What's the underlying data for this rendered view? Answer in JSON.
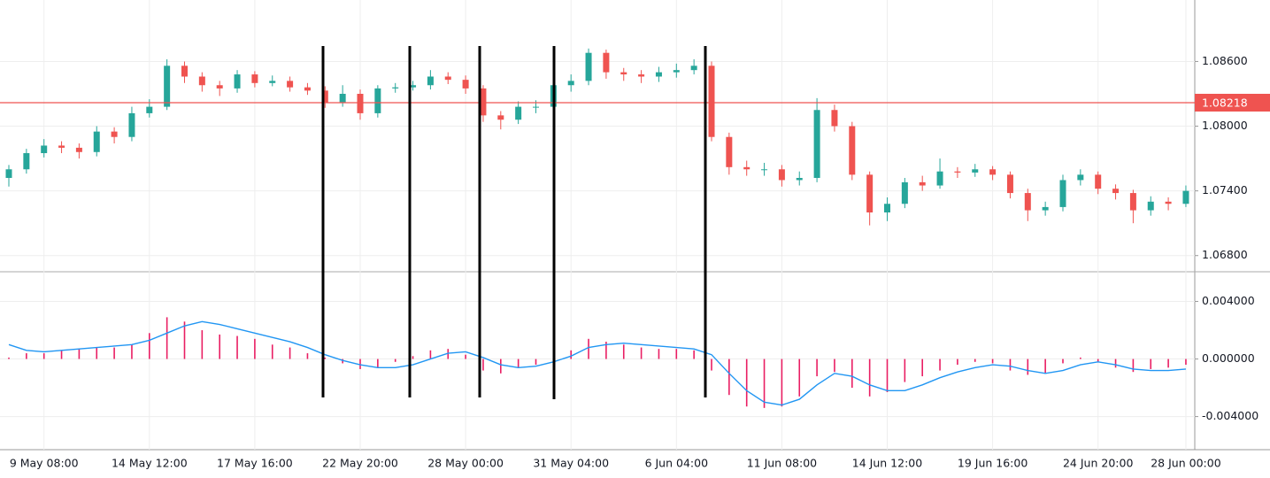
{
  "chart_data": [
    {
      "type": "candlestick",
      "open": [
        1.0752,
        1.076,
        1.0775,
        1.0782,
        1.078,
        1.0776,
        1.0795,
        1.079,
        1.0812,
        1.0818,
        1.0856,
        1.0846,
        1.0838,
        1.0835,
        1.0848,
        1.084,
        1.0842,
        1.0836,
        1.0833,
        1.0822,
        1.083,
        1.0812,
        1.0835,
        1.0836,
        1.0838,
        1.0846,
        1.0843,
        1.0835,
        1.081,
        1.0806,
        1.0818,
        1.0818,
        1.0838,
        1.0842,
        1.0868,
        1.085,
        1.0848,
        1.0846,
        1.085,
        1.0852,
        1.0856,
        1.079,
        1.0762,
        1.076,
        1.076,
        1.075,
        1.0752,
        1.0815,
        1.08,
        1.0755,
        1.072,
        1.0728,
        1.0748,
        1.0745,
        1.0758,
        1.0757,
        1.076,
        1.0755,
        1.0738,
        1.0722,
        1.0725,
        1.075,
        1.0755,
        1.0742,
        1.0738,
        1.0722,
        1.073,
        1.0728
      ],
      "high": [
        1.0764,
        1.0779,
        1.0788,
        1.0786,
        1.0784,
        1.08,
        1.0799,
        1.0818,
        1.0825,
        1.0862,
        1.086,
        1.085,
        1.0842,
        1.0852,
        1.0851,
        1.0847,
        1.0846,
        1.084,
        1.0837,
        1.0838,
        1.0834,
        1.0838,
        1.084,
        1.0842,
        1.0852,
        1.085,
        1.0847,
        1.0838,
        1.0814,
        1.0823,
        1.0824,
        1.0844,
        1.0848,
        1.0872,
        1.0871,
        1.0854,
        1.0852,
        1.0855,
        1.0858,
        1.0862,
        1.086,
        1.0794,
        1.0768,
        1.0766,
        1.0764,
        1.0758,
        1.0826,
        1.082,
        1.0804,
        1.0758,
        1.0734,
        1.0752,
        1.0754,
        1.077,
        1.0762,
        1.0765,
        1.0763,
        1.0758,
        1.0742,
        1.073,
        1.0755,
        1.076,
        1.0758,
        1.0746,
        1.0741,
        1.0735,
        1.0734,
        1.0745
      ],
      "low": [
        1.0744,
        1.0756,
        1.0771,
        1.0775,
        1.077,
        1.0772,
        1.0784,
        1.0786,
        1.0808,
        1.0815,
        1.084,
        1.0832,
        1.0828,
        1.0831,
        1.0836,
        1.0837,
        1.0832,
        1.0829,
        1.0817,
        1.0818,
        1.0806,
        1.0808,
        1.0831,
        1.0833,
        1.0834,
        1.0839,
        1.083,
        1.0804,
        1.0797,
        1.0802,
        1.0812,
        1.0814,
        1.0832,
        1.0838,
        1.0844,
        1.0842,
        1.084,
        1.0841,
        1.0845,
        1.0848,
        1.0786,
        1.0755,
        1.0754,
        1.0754,
        1.0744,
        1.0745,
        1.0748,
        1.0795,
        1.075,
        1.0708,
        1.0712,
        1.0724,
        1.074,
        1.0742,
        1.0752,
        1.0753,
        1.075,
        1.0733,
        1.0712,
        1.0717,
        1.0721,
        1.0745,
        1.0737,
        1.0732,
        1.071,
        1.0717,
        1.0722,
        1.0725
      ],
      "close": [
        1.076,
        1.0775,
        1.0782,
        1.078,
        1.0776,
        1.0795,
        1.079,
        1.0812,
        1.0818,
        1.0856,
        1.0846,
        1.0838,
        1.0835,
        1.0848,
        1.084,
        1.0842,
        1.0836,
        1.0833,
        1.0822,
        1.083,
        1.0812,
        1.0835,
        1.0836,
        1.0838,
        1.0846,
        1.0843,
        1.0835,
        1.081,
        1.0806,
        1.0818,
        1.0818,
        1.0838,
        1.0842,
        1.0868,
        1.085,
        1.0848,
        1.0846,
        1.085,
        1.0852,
        1.0856,
        1.079,
        1.0762,
        1.076,
        1.076,
        1.075,
        1.0752,
        1.0815,
        1.08,
        1.0755,
        1.072,
        1.0728,
        1.0748,
        1.0745,
        1.0758,
        1.0757,
        1.076,
        1.0755,
        1.0738,
        1.0722,
        1.0725,
        1.075,
        1.0755,
        1.0742,
        1.0738,
        1.0722,
        1.073,
        1.0728,
        1.074
      ],
      "up_color": "#26a69a",
      "down_color": "#ef5350",
      "ylim": [
        1.0665,
        1.0917
      ],
      "yticks": [
        {
          "value": 1.068,
          "label": "1.06800"
        },
        {
          "value": 1.074,
          "label": "1.07400"
        },
        {
          "value": 1.08,
          "label": "1.08000"
        },
        {
          "value": 1.086,
          "label": "1.08600"
        }
      ],
      "grid": true,
      "price_line": {
        "value": 1.08218,
        "color": "#ef5350"
      }
    },
    {
      "type": "macd",
      "categories": [
        null,
        null,
        "9 May 08:00",
        null,
        null,
        null,
        null,
        null,
        "14 May 12:00",
        null,
        null,
        null,
        null,
        null,
        "17 May 16:00",
        null,
        null,
        null,
        null,
        null,
        "22 May 20:00",
        null,
        null,
        null,
        null,
        null,
        "28 May 00:00",
        null,
        null,
        null,
        null,
        null,
        "31 May 04:00",
        null,
        null,
        null,
        null,
        null,
        "6 Jun 04:00",
        null,
        null,
        null,
        null,
        null,
        "11 Jun 08:00",
        null,
        null,
        null,
        null,
        null,
        "14 Jun 12:00",
        null,
        null,
        null,
        null,
        null,
        "19 Jun 16:00",
        null,
        null,
        null,
        null,
        null,
        "24 Jun 20:00",
        null,
        null,
        null,
        null,
        "28 Jun 00:00"
      ],
      "histogram": {
        "color": "#e91e63",
        "values": [
          0.0001,
          0.0004,
          0.0004,
          0.0006,
          0.0007,
          0.0008,
          0.0008,
          0.001,
          0.0018,
          0.0029,
          0.0026,
          0.002,
          0.0017,
          0.0016,
          0.0014,
          0.001,
          0.0008,
          0.0004,
          0.0001,
          -0.0003,
          -0.0007,
          -0.0006,
          -0.0002,
          0.0002,
          0.0006,
          0.0007,
          0.0003,
          -0.0008,
          -0.001,
          -0.0006,
          -0.0004,
          0.0001,
          0.0006,
          0.0014,
          0.0012,
          0.001,
          0.0008,
          0.0007,
          0.0007,
          0.0006,
          -0.0008,
          -0.0025,
          -0.0033,
          -0.0034,
          -0.0033,
          -0.0026,
          -0.0012,
          -0.0009,
          -0.002,
          -0.0026,
          -0.0023,
          -0.0016,
          -0.0012,
          -0.0008,
          -0.0004,
          -0.0002,
          -0.0003,
          -0.0008,
          -0.0011,
          -0.001,
          -0.0003,
          0.0001,
          -0.0002,
          -0.0006,
          -0.0009,
          -0.0007,
          -0.0006,
          -0.0004
        ]
      },
      "signal": {
        "color": "#2196f3",
        "values": [
          0.001,
          0.0006,
          0.0005,
          0.0006,
          0.0007,
          0.0008,
          0.0009,
          0.001,
          0.0013,
          0.0018,
          0.0023,
          0.0026,
          0.0024,
          0.0021,
          0.0018,
          0.0015,
          0.0012,
          0.0008,
          0.0003,
          -0.0001,
          -0.0004,
          -0.0006,
          -0.0006,
          -0.0004,
          0.0,
          0.0004,
          0.0005,
          0.0001,
          -0.0004,
          -0.0006,
          -0.0005,
          -0.0002,
          0.0002,
          0.0008,
          0.001,
          0.0011,
          0.001,
          0.0009,
          0.0008,
          0.0007,
          0.0003,
          -0.001,
          -0.0022,
          -0.003,
          -0.0032,
          -0.0028,
          -0.0018,
          -0.001,
          -0.0012,
          -0.0018,
          -0.0022,
          -0.0022,
          -0.0018,
          -0.0013,
          -0.0009,
          -0.0006,
          -0.0004,
          -0.0005,
          -0.0008,
          -0.001,
          -0.0008,
          -0.0004,
          -0.0002,
          -0.0004,
          -0.0007,
          -0.0008,
          -0.0008,
          -0.0007
        ]
      },
      "ylim": [
        -0.0063,
        0.006
      ],
      "yticks": [
        {
          "value": -0.004,
          "label": "-0.004000"
        },
        {
          "value": 0,
          "label": "0.000000"
        },
        {
          "value": 0.004,
          "label": "0.004000"
        }
      ],
      "grid": true
    }
  ]
}
